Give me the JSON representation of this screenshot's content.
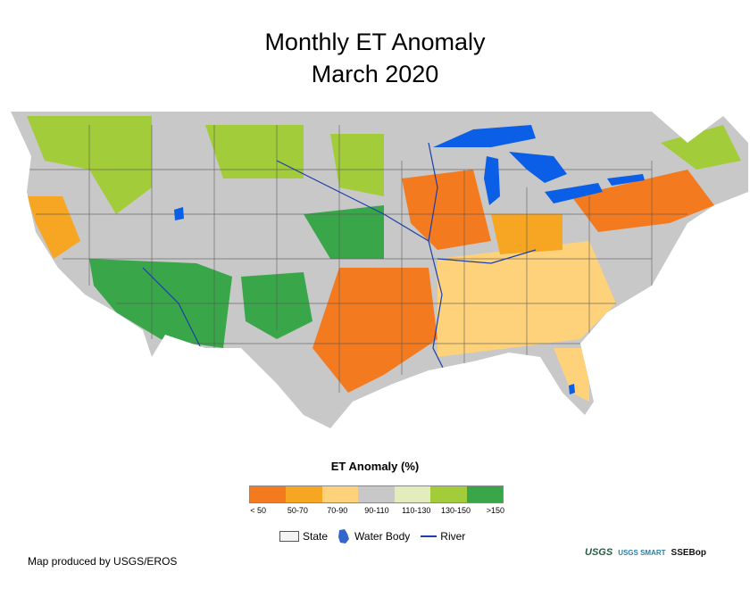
{
  "title": {
    "line1": "Monthly ET Anomaly",
    "line2": "March 2020"
  },
  "legend": {
    "title": "ET Anomaly (%)",
    "classes": [
      {
        "label": "< 50",
        "color": "#f47a20"
      },
      {
        "label": "50-70",
        "color": "#f6a623"
      },
      {
        "label": "70-90",
        "color": "#fdd27a"
      },
      {
        "label": "90-110",
        "color": "#c8c8c8"
      },
      {
        "label": "110-130",
        "color": "#e3ecbd"
      },
      {
        "label": "130-150",
        "color": "#a2cc3a"
      },
      {
        "label": ">150",
        "color": "#3aa64a"
      }
    ],
    "symbols": {
      "state": "State",
      "water_body": "Water Body",
      "river": "River"
    }
  },
  "credit": "Map produced by USGS/EROS",
  "logos": {
    "usgs": "USGS",
    "smart": "USGS SMART",
    "ssebop": "SSEBop"
  },
  "colors": {
    "water": "#0a5fe6",
    "river": "#1b3fa8",
    "state_border": "#555555"
  }
}
